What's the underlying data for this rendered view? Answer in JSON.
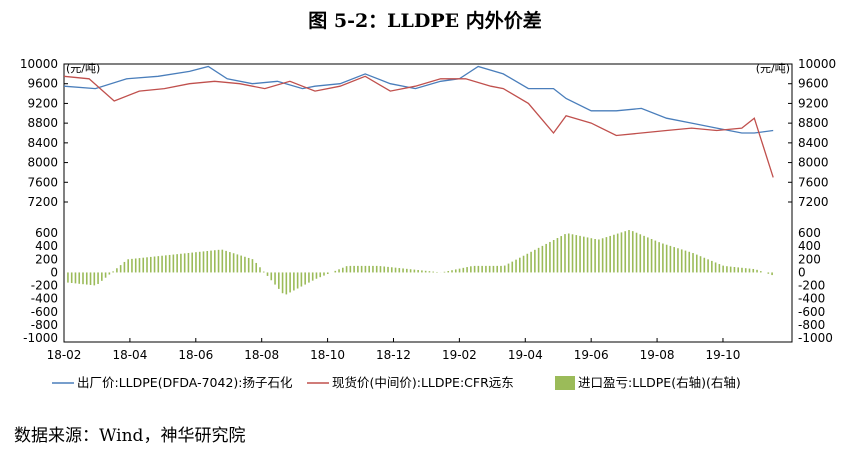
{
  "title": "图 5-2：LLDPE 内外价差",
  "source": "数据来源：Wind，神华研究院",
  "chart_data": {
    "type": "line",
    "left_unit": "(元/吨)",
    "right_unit": "(元/吨)",
    "price_axis": {
      "ylim": [
        7200,
        10000
      ],
      "ticks": [
        "10000",
        "9600",
        "9200",
        "8800",
        "8400",
        "8000",
        "7600",
        "7200"
      ]
    },
    "spread_axis": {
      "ylim": [
        -1000,
        800
      ],
      "ticks": [
        "600",
        "400",
        "200",
        "0",
        "-200",
        "-400",
        "-600",
        "-800",
        "-1000"
      ]
    },
    "x_ticks": [
      "18-02",
      "18-04",
      "18-06",
      "18-08",
      "18-10",
      "18-12",
      "19-02",
      "19-04",
      "19-06",
      "19-08",
      "19-10"
    ],
    "series": [
      {
        "name": "出厂价:LLDPE(DFDA-7042):扬子石化",
        "color": "#4a7ebb",
        "x": [
          0,
          0.5,
          1,
          1.5,
          2,
          2.3,
          2.6,
          3,
          3.4,
          3.8,
          4,
          4.4,
          4.8,
          5.2,
          5.6,
          6,
          6.3,
          6.6,
          7,
          7.4,
          7.8,
          8,
          8.4,
          8.8,
          9.2,
          9.6,
          10,
          10.4,
          10.8,
          11,
          11.3
        ],
        "values": [
          9550,
          9500,
          9700,
          9750,
          9850,
          9950,
          9700,
          9600,
          9650,
          9500,
          9550,
          9600,
          9800,
          9600,
          9500,
          9650,
          9700,
          9950,
          9800,
          9500,
          9500,
          9300,
          9050,
          9050,
          9100,
          8900,
          8800,
          8700,
          8600,
          8600,
          8650
        ]
      },
      {
        "name": "现货价(中间价):LLDPE:CFR远东",
        "color": "#c0504d",
        "x": [
          0,
          0.4,
          0.8,
          1.2,
          1.6,
          2,
          2.4,
          2.8,
          3.2,
          3.6,
          4,
          4.4,
          4.8,
          5.2,
          5.6,
          6,
          6.4,
          6.8,
          7,
          7.4,
          7.8,
          8,
          8.4,
          8.8,
          9.2,
          9.6,
          10,
          10.4,
          10.8,
          11,
          11.3
        ],
        "values": [
          9750,
          9700,
          9250,
          9450,
          9500,
          9600,
          9650,
          9600,
          9500,
          9650,
          9450,
          9550,
          9750,
          9450,
          9550,
          9700,
          9700,
          9550,
          9500,
          9200,
          8600,
          8950,
          8800,
          8550,
          8600,
          8650,
          8700,
          8650,
          8700,
          8900,
          7700
        ]
      },
      {
        "name": "进口盈亏:LLDPE(右轴)(右轴)",
        "color": "#9bbb59",
        "axis": "right",
        "x": [
          0,
          0.5,
          1,
          1.5,
          2,
          2.5,
          3,
          3.5,
          4,
          4.5,
          5,
          5.5,
          6,
          6.5,
          7,
          7.5,
          8,
          8.5,
          9,
          9.5,
          10,
          10.5,
          11,
          11.3
        ],
        "values": [
          -150,
          -200,
          200,
          250,
          300,
          350,
          200,
          -350,
          -100,
          100,
          100,
          50,
          0,
          100,
          100,
          350,
          600,
          500,
          650,
          450,
          300,
          100,
          50,
          -50
        ]
      }
    ]
  }
}
